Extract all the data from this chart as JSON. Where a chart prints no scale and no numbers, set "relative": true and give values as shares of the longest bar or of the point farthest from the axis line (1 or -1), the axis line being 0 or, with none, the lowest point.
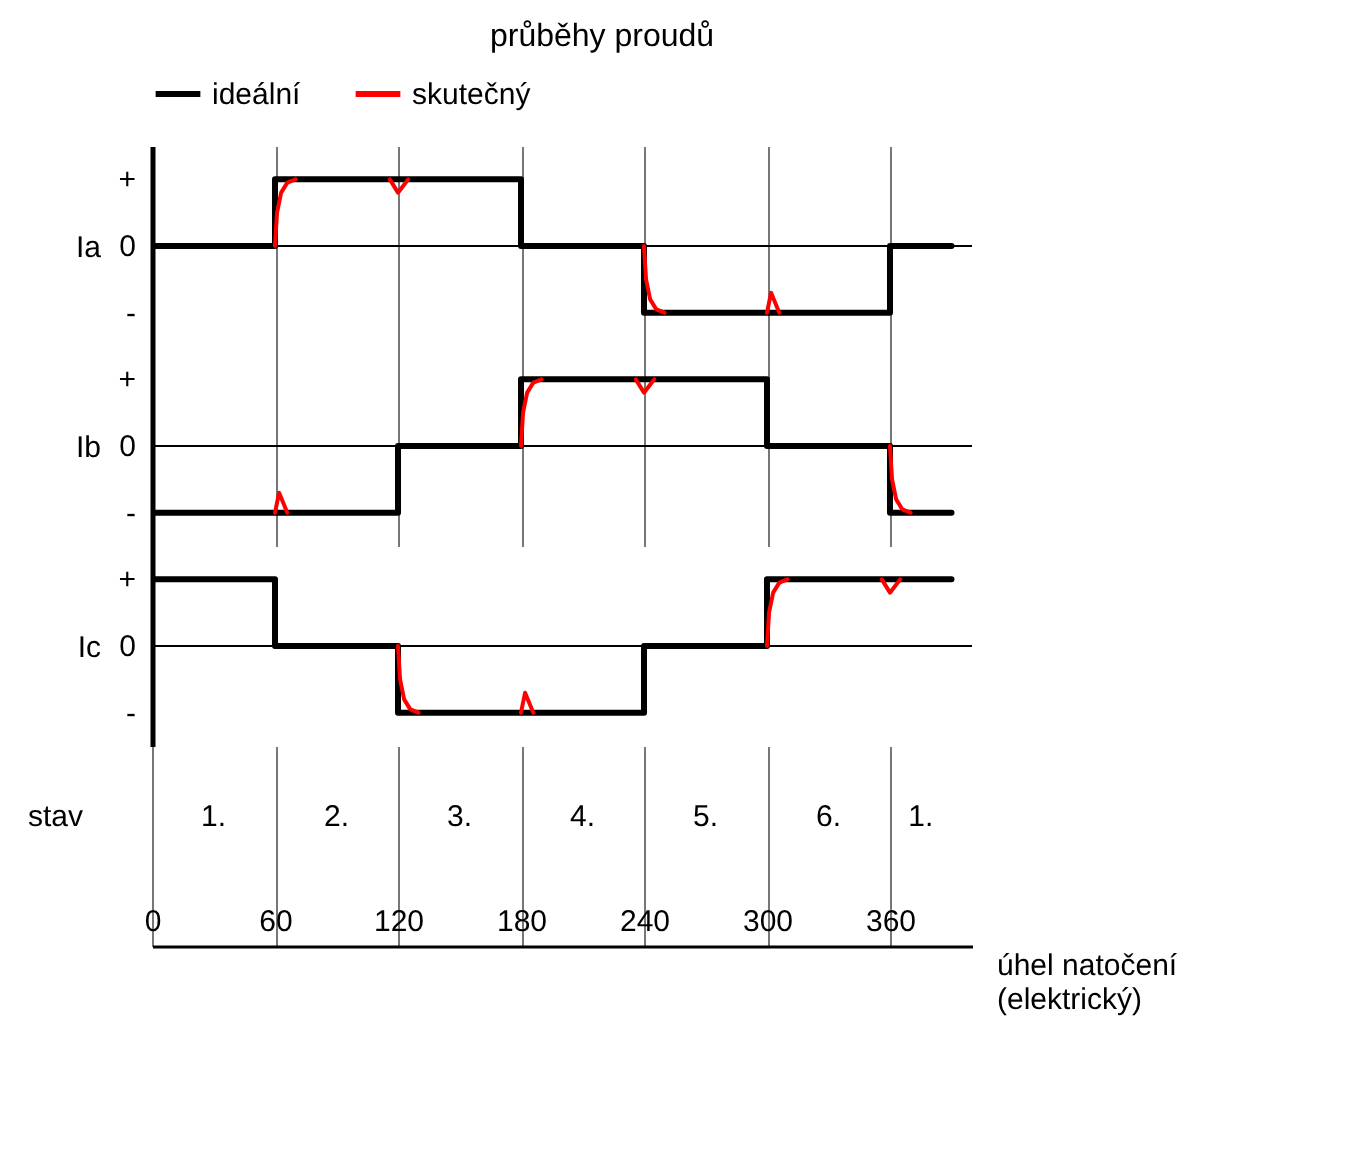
{
  "chart_data": [
    {
      "type": "step",
      "title": "průběhy proudů",
      "ylabel": "Ia",
      "legend": "top",
      "grid": "x",
      "tick_labels": false,
      "relative": true,
      "x": [
        0,
        60,
        120,
        180,
        240,
        300,
        360,
        390
      ],
      "series": [
        {
          "name": "ideální",
          "color": "#000000",
          "values": [
            0,
            1,
            1,
            0,
            -1,
            -1,
            0,
            0
          ]
        },
        {
          "name": "skutečný",
          "color": "#ff0000",
          "type": "line",
          "x": [
            60,
            61,
            63,
            66,
            70,
            90,
            116,
            120,
            125,
            150,
            240,
            241,
            243,
            246,
            250,
            270,
            300,
            302,
            306
          ],
          "values": [
            0,
            0.5,
            0.8,
            0.95,
            1,
            null,
            1,
            0.8,
            1,
            null,
            0,
            -0.5,
            -0.8,
            -0.95,
            -1,
            null,
            -1,
            -0.7,
            -1
          ]
        }
      ],
      "xlim": [
        0,
        400
      ],
      "xticks": [
        0,
        60,
        120,
        180,
        240,
        300,
        360
      ],
      "ref_lines": [
        {
          "axis": "y",
          "value": 0
        }
      ],
      "annotations": [
        "+",
        "0",
        "-"
      ]
    },
    {
      "type": "step",
      "ylabel": "Ib",
      "grid": "x",
      "tick_labels": false,
      "relative": true,
      "x": [
        0,
        60,
        120,
        180,
        240,
        300,
        360,
        390
      ],
      "series": [
        {
          "color": "#000000",
          "values": [
            -1,
            -1,
            0,
            1,
            1,
            0,
            -1,
            -1
          ]
        },
        {
          "color": "#ff0000",
          "type": "line",
          "x": [
            60,
            62,
            66,
            100,
            180,
            181,
            183,
            186,
            190,
            210,
            236,
            240,
            245,
            300,
            360,
            361,
            363,
            366,
            370
          ],
          "values": [
            -1,
            -0.7,
            -1,
            null,
            0,
            0.5,
            0.8,
            0.95,
            1,
            null,
            1,
            0.8,
            1,
            null,
            0,
            -0.5,
            -0.8,
            -0.95,
            -1
          ]
        }
      ],
      "xlim": [
        0,
        400
      ],
      "xticks": [
        0,
        60,
        120,
        180,
        240,
        300,
        360
      ],
      "ref_lines": [
        {
          "axis": "y",
          "value": 0
        }
      ],
      "annotations": [
        "+",
        "0",
        "-"
      ]
    },
    {
      "type": "step",
      "ylabel": "Ic",
      "xlabel": "úhel natočení\n(elektrický)",
      "grid": "x",
      "tick_labels": "x",
      "relative": true,
      "x": [
        0,
        60,
        120,
        180,
        240,
        300,
        360,
        390
      ],
      "series": [
        {
          "color": "#000000",
          "values": [
            1,
            0,
            -1,
            -1,
            0,
            1,
            1,
            1
          ]
        },
        {
          "color": "#ff0000",
          "type": "line",
          "x": [
            120,
            121,
            123,
            126,
            130,
            150,
            180,
            182,
            186,
            240,
            300,
            301,
            303,
            306,
            310,
            330,
            356,
            360,
            365
          ],
          "values": [
            0,
            -0.5,
            -0.8,
            -0.95,
            -1,
            null,
            -1,
            -0.7,
            -1,
            null,
            0,
            0.5,
            0.8,
            0.95,
            1,
            null,
            1,
            0.8,
            1
          ]
        }
      ],
      "xlim": [
        0,
        400
      ],
      "xticks": [
        0,
        60,
        120,
        180,
        240,
        300,
        360
      ],
      "ref_lines": [
        {
          "axis": "y",
          "value": 0
        }
      ],
      "annotations": [
        "+",
        "0",
        "-",
        "stav",
        "1.",
        "2.",
        "3.",
        "4.",
        "5.",
        "6.",
        "1."
      ]
    }
  ]
}
